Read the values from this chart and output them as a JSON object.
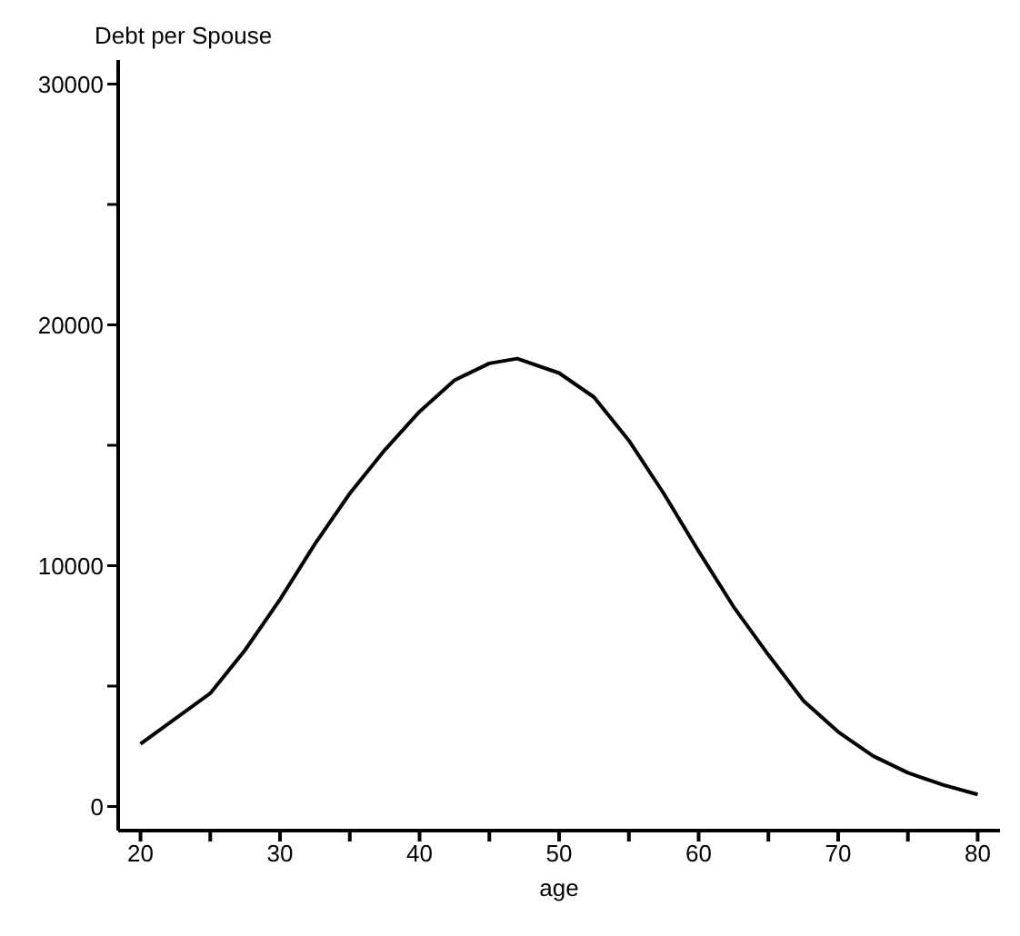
{
  "chart_data": {
    "type": "line",
    "ylabel": "Debt per Spouse",
    "xlabel": "age",
    "x": [
      20,
      25,
      27.5,
      30,
      32.5,
      35,
      37.5,
      40,
      42.5,
      45,
      47,
      50,
      52.5,
      55,
      57.5,
      60,
      62.5,
      65,
      67.5,
      70,
      72.5,
      75,
      77.5,
      80
    ],
    "values": [
      2600,
      4700,
      6500,
      8600,
      10900,
      13000,
      14800,
      16400,
      17700,
      18400,
      18600,
      18000,
      17000,
      15200,
      13000,
      10600,
      8300,
      6300,
      4400,
      3100,
      2100,
      1400,
      900,
      500
    ],
    "color": "#000000",
    "marker": "none",
    "xlim": [
      18.4,
      81.6
    ],
    "ylim": [
      -1000,
      31000
    ],
    "xticks": [
      20,
      {
        "value": 25,
        "label": null
      },
      30,
      {
        "value": 35,
        "label": null
      },
      40,
      {
        "value": 45,
        "label": null
      },
      50,
      {
        "value": 55,
        "label": null
      },
      60,
      {
        "value": 65,
        "label": null
      },
      70,
      {
        "value": 75,
        "label": null
      },
      80
    ],
    "yticks": [
      0,
      {
        "value": 5000,
        "label": null
      },
      10000,
      {
        "value": 15000,
        "label": null
      },
      20000,
      {
        "value": 25000,
        "label": null
      },
      30000
    ]
  }
}
